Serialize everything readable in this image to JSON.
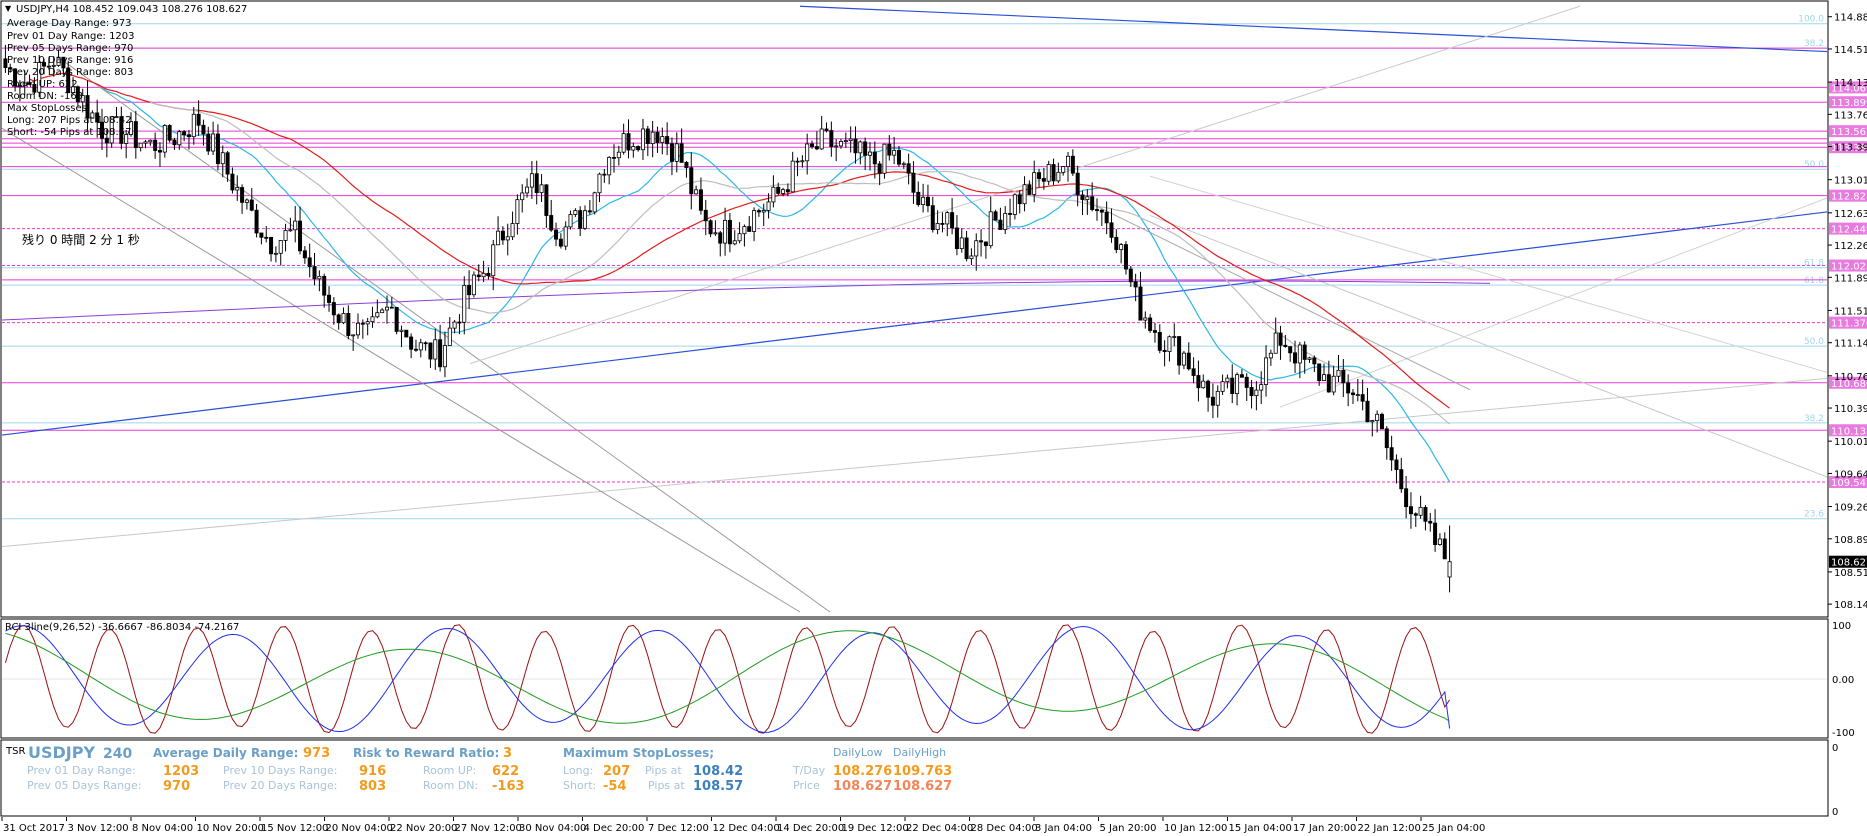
{
  "header": {
    "symbol_line": "USDJPY,H4  108.452 109.043 108.276 108.627",
    "info_lines": [
      "Average Day  Range: 973",
      "Prev 01  Day  Range: 1203",
      "Prev 05  Days Range: 970",
      "Prev 10  Days Range: 916",
      "Prev 20  Days Range: 803",
      "Room UP: 622",
      "Room DN: -163",
      "Max StopLosses:",
      "Long: 207 Pips at 108.42",
      "Short: -54 Pips at 108.57"
    ],
    "countdown": "残り 0 時間 2 分 1 秒"
  },
  "colors": {
    "candle": "#000000",
    "ma_red": "#e41b1b",
    "ma_cyan": "#2bb8e8",
    "ma_purple": "#8b3fd6",
    "trend_blue": "#2a4fd8",
    "level_pink": "#e83ad6",
    "fib_cyan": "#9fd6ee",
    "rci_short": "#9b1010",
    "rci_mid": "#1f2ff0",
    "rci_long": "#1f9a1f",
    "tsr_text": "#6a9fc6",
    "tsr_value": "#f29b1d",
    "tsr_low": "#f29b1d",
    "tsr_high": "#f29b1d",
    "tsr_blue": "#3b7fbf"
  },
  "price_axis": {
    "ticks": [
      "114.880",
      "114.510",
      "114.130",
      "113.760",
      "113.390",
      "113.010",
      "112.630",
      "112.260",
      "111.890",
      "111.510",
      "111.140",
      "110.760",
      "110.390",
      "110.010",
      "109.640",
      "109.260",
      "108.890",
      "108.510",
      "108.140"
    ],
    "current": "108.627"
  },
  "level_labels": [
    {
      "price": 114.069,
      "text": "114.069"
    },
    {
      "price": 113.899,
      "text": "113.899"
    },
    {
      "price": 113.567,
      "text": "113.567"
    },
    {
      "price": 113.383,
      "text": "113.383"
    },
    {
      "price": 112.827,
      "text": "112.827"
    },
    {
      "price": 112.449,
      "text": "112.449"
    },
    {
      "price": 112.025,
      "text": "112.025"
    },
    {
      "price": 111.37,
      "text": "111.370"
    },
    {
      "price": 110.68,
      "text": "110.680"
    },
    {
      "price": 110.135,
      "text": "110.135"
    },
    {
      "price": 109.541,
      "text": "109.541"
    }
  ],
  "fib_labels": [
    {
      "price": 114.8,
      "text": "100.0"
    },
    {
      "price": 114.52,
      "text": "38.2"
    },
    {
      "price": 113.13,
      "text": "50.0"
    },
    {
      "price": 112.0,
      "text": "61.8"
    },
    {
      "price": 111.8,
      "text": "61.8"
    },
    {
      "price": 111.1,
      "text": "50.0"
    },
    {
      "price": 110.22,
      "text": "38.2"
    },
    {
      "price": 109.12,
      "text": "23.6"
    }
  ],
  "rci": {
    "title": "RCI 3line(9,26,52) -36.6667 -86.8034 -74.2167",
    "ticks": [
      "100",
      "0.00",
      "-100"
    ]
  },
  "tsr": {
    "tag": "TSR",
    "symbol": "USDJPY",
    "period": "240",
    "adr_label": "Average Daily Range:",
    "adr_value": "973",
    "rr_label": "Risk to Reward Ratio:",
    "rr_value": "3",
    "msl_label": "Maximum StopLosses;",
    "daily_low_label": "DailyLow",
    "daily_high_label": "DailyHigh",
    "prev01_label": "Prev 01 Day Range:",
    "prev01_value": "1203",
    "prev05_label": "Prev 05 Days Range:",
    "prev05_value": "970",
    "prev10_label": "Prev 10 Days Range:",
    "prev10_value": "916",
    "prev20_label": "Prev 20 Days Range:",
    "prev20_value": "803",
    "room_up_label": "Room UP:",
    "room_up_value": "622",
    "room_dn_label": "Room DN:",
    "room_dn_value": "-163",
    "long_label": "Long:",
    "long_value": "207",
    "short_label": "Short:",
    "short_value": "-54",
    "pips_at_label": "Pips at",
    "long_price": "108.42",
    "short_price": "108.57",
    "tday_label": "T/Day",
    "tday_low": "108.276",
    "tday_high": "109.763",
    "price_label": "Price",
    "price_low": "108.627",
    "price_high": "108.627"
  },
  "tsr_axis": {
    "ticks": [
      "0",
      "0"
    ]
  },
  "chart_data": {
    "type": "candlestick",
    "title": "USDJPY,H4",
    "ylim": [
      108.05,
      114.98
    ],
    "x_labels": [
      "31 Oct 2017",
      "3 Nov 12:00",
      "8 Nov 04:00",
      "10 Nov 20:00",
      "15 Nov 12:00",
      "20 Nov 04:00",
      "22 Nov 20:00",
      "27 Nov 12:00",
      "30 Nov 04:00",
      "4 Dec 20:00",
      "7 Dec 12:00",
      "12 Dec 04:00",
      "14 Dec 20:00",
      "19 Dec 12:00",
      "22 Dec 04:00",
      "28 Dec 04:00",
      "3 Jan 04:00",
      "5 Jan 20:00",
      "10 Jan 12:00",
      "15 Jan 04:00",
      "17 Jan 20:00",
      "22 Jan 12:00",
      "25 Jan 04:00"
    ],
    "close_path": [
      114.3,
      114.1,
      114.4,
      114.0,
      113.6,
      113.55,
      113.4,
      113.5,
      113.7,
      113.2,
      112.7,
      112.3,
      112.4,
      111.8,
      111.4,
      111.2,
      111.55,
      111.1,
      111.0,
      111.6,
      112.0,
      112.6,
      113.0,
      112.4,
      112.6,
      113.3,
      113.5,
      113.6,
      113.3,
      112.5,
      112.4,
      112.6,
      112.8,
      113.2,
      113.45,
      113.35,
      113.2,
      113.3,
      112.7,
      112.5,
      112.2,
      112.5,
      112.8,
      113.0,
      113.2,
      112.8,
      112.5,
      111.6,
      111.2,
      111.0,
      110.5,
      110.6,
      110.7,
      111.2,
      110.9,
      110.7,
      110.6,
      110.2,
      109.5,
      109.0,
      108.6
    ],
    "last": {
      "open": 108.452,
      "high": 109.043,
      "low": 108.276,
      "close": 108.627
    },
    "rci_series": [
      "short(9)",
      "mid(26)",
      "long(52)"
    ],
    "rci_last": [
      -36.6667,
      -86.8034,
      -74.2167
    ],
    "rci_range": [
      -100,
      100
    ]
  }
}
